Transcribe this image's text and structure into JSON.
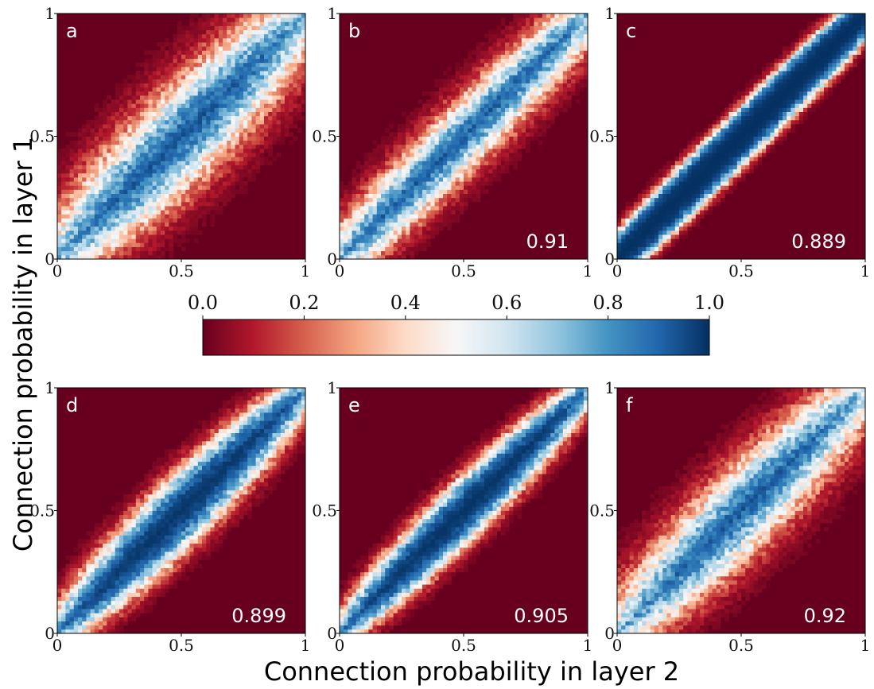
{
  "colors": {
    "low": "#67001f",
    "high": "#053061"
  },
  "chart_data": {
    "type": "heatmap",
    "colormap": "RdBu (dark red = 0.0, white = 0.5, dark blue = 1.0)",
    "xlabel": "Connection probability in layer 2",
    "ylabel": "Connection probability in layer 1",
    "xlim": [
      0,
      1
    ],
    "ylim": [
      0,
      1
    ],
    "x_ticks": [
      "0",
      "0.5",
      "1"
    ],
    "y_ticks": [
      "0",
      "0.5",
      "1"
    ],
    "colorbar": {
      "orientation": "horizontal",
      "range": [
        0.0,
        1.0
      ],
      "ticks": [
        "0.0",
        "0.2",
        "0.4",
        "0.6",
        "0.8",
        "1.0"
      ]
    },
    "panels": [
      {
        "label": "a",
        "value": "",
        "band_halfwidth": 0.13,
        "edge_softness": 0.05,
        "end_taper": 0.6
      },
      {
        "label": "b",
        "value": "0.91",
        "band_halfwidth": 0.085,
        "edge_softness": 0.035,
        "end_taper": 0.3
      },
      {
        "label": "c",
        "value": "0.889",
        "band_halfwidth": 0.085,
        "edge_softness": 0.012,
        "end_taper": 0.1
      },
      {
        "label": "d",
        "value": "0.899",
        "band_halfwidth": 0.11,
        "edge_softness": 0.025,
        "end_taper": 0.6
      },
      {
        "label": "e",
        "value": "0.905",
        "band_halfwidth": 0.095,
        "edge_softness": 0.02,
        "end_taper": 0.6
      },
      {
        "label": "f",
        "value": "0.92",
        "band_halfwidth": 0.11,
        "edge_softness": 0.045,
        "end_taper": 0.6
      }
    ]
  }
}
